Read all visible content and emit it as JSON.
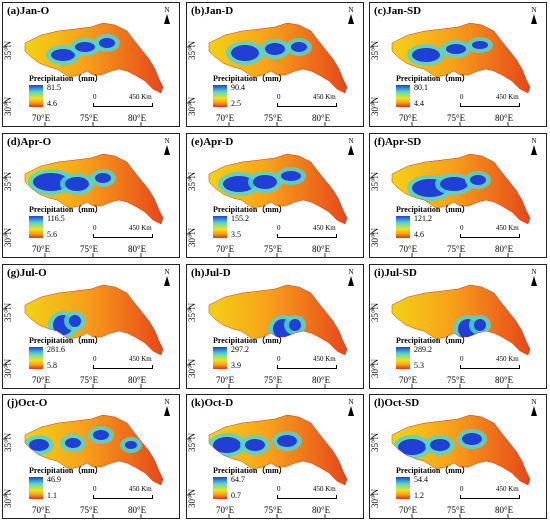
{
  "legend_title": "Precipitation（mm）",
  "scale": {
    "zero": "0",
    "distance": "450 Km"
  },
  "lat_labels": [
    "35°N",
    "30°N"
  ],
  "lon_labels": [
    "70°E",
    "75°E",
    "80°E"
  ],
  "north_label": "N",
  "colors": {
    "high": "#1f3fd6",
    "mid": "#f2e313",
    "low": "#e3321a",
    "frame": "#222222"
  },
  "panels": [
    {
      "title": "(a)Jan-O",
      "max": "81.5",
      "min": "4.6"
    },
    {
      "title": "(b)Jan-D",
      "max": "90.4",
      "min": "2.5"
    },
    {
      "title": "(c)Jan-SD",
      "max": "80.1",
      "min": "4.4"
    },
    {
      "title": "(d)Apr-O",
      "max": "116.5",
      "min": "5.6"
    },
    {
      "title": "(e)Apr-D",
      "max": "155.2",
      "min": "3.5"
    },
    {
      "title": "(f)Apr-SD",
      "max": "121.2",
      "min": "4.6"
    },
    {
      "title": "(g)Jul-O",
      "max": "281.6",
      "min": "5.8"
    },
    {
      "title": "(h)Jul-D",
      "max": "297.2",
      "min": "3.9"
    },
    {
      "title": "(i)Jul-SD",
      "max": "289.2",
      "min": "5.3"
    },
    {
      "title": "(j)Oct-O",
      "max": "46.9",
      "min": "1.1"
    },
    {
      "title": "(k)Oct-D",
      "max": "64.7",
      "min": "0.7"
    },
    {
      "title": "(l)Oct-SD",
      "max": "54.4",
      "min": "1.2"
    }
  ]
}
